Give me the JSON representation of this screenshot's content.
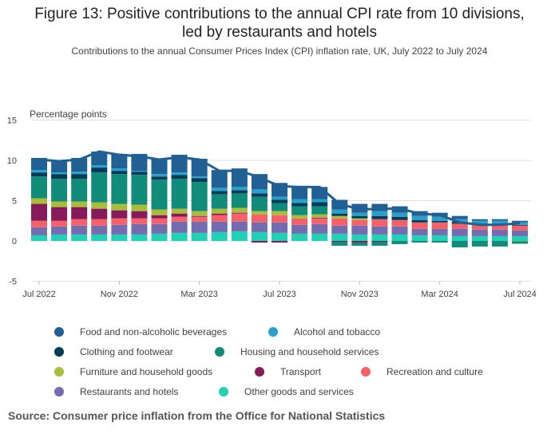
{
  "chart_data": {
    "type": "bar",
    "stacked": true,
    "title": "Figure 13: Positive contributions to the annual CPI rate from 10 divisions, led by restaurants and hotels",
    "title_lines": [
      "Figure 13: Positive contributions to the annual CPI rate from 10 divisions,",
      "led by restaurants and hotels"
    ],
    "subtitle": "Contributions to the annual Consumer Prices Index (CPI) inflation rate, UK, July 2022 to July 2024",
    "ylabel": "Percentage points",
    "xlabel": "",
    "ylim": [
      -5,
      15
    ],
    "yticks": [
      -5,
      0,
      5,
      10,
      15
    ],
    "grid": true,
    "legend_position": "bottom",
    "categories": [
      "Jul 2022",
      "Aug 2022",
      "Sep 2022",
      "Oct 2022",
      "Nov 2022",
      "Dec 2022",
      "Jan 2023",
      "Feb 2023",
      "Mar 2023",
      "Apr 2023",
      "May 2023",
      "Jun 2023",
      "Jul 2023",
      "Aug 2023",
      "Sep 2023",
      "Oct 2023",
      "Nov 2023",
      "Dec 2023",
      "Jan 2024",
      "Feb 2024",
      "Mar 2024",
      "Apr 2024",
      "May 2024",
      "Jun 2024",
      "Jul 2024"
    ],
    "xticks": [
      {
        "index": 0,
        "label": "Jul 2022"
      },
      {
        "index": 4,
        "label": "Nov 2022"
      },
      {
        "index": 8,
        "label": "Mar 2023"
      },
      {
        "index": 12,
        "label": "Jul 2023"
      },
      {
        "index": 16,
        "label": "Nov 2023"
      },
      {
        "index": 20,
        "label": "Mar 2024"
      },
      {
        "index": 24,
        "label": "Jul 2024"
      }
    ],
    "series": [
      {
        "name": "Other goods and services",
        "color": "#22d0b6",
        "values": [
          0.7,
          0.8,
          0.8,
          0.8,
          0.8,
          0.8,
          0.9,
          1.0,
          1.0,
          1.1,
          1.2,
          1.1,
          1.0,
          0.9,
          0.9,
          0.9,
          0.8,
          0.8,
          0.8,
          0.7,
          0.7,
          0.6,
          0.6,
          0.6,
          0.6
        ]
      },
      {
        "name": "Restaurants and hotels",
        "color": "#746cb1",
        "values": [
          1.0,
          1.0,
          1.1,
          1.1,
          1.2,
          1.3,
          1.2,
          1.4,
          1.4,
          1.3,
          1.2,
          1.2,
          1.3,
          1.1,
          1.2,
          1.0,
          1.1,
          1.0,
          1.0,
          0.8,
          0.8,
          0.9,
          0.8,
          0.8,
          0.7
        ]
      },
      {
        "name": "Recreation and culture",
        "color": "#f66068",
        "values": [
          0.8,
          0.7,
          0.8,
          0.8,
          0.8,
          0.7,
          0.7,
          0.6,
          0.6,
          0.8,
          1.0,
          1.0,
          0.9,
          0.8,
          0.7,
          0.9,
          0.7,
          0.9,
          0.8,
          0.8,
          0.8,
          0.6,
          0.6,
          0.6,
          0.6
        ]
      },
      {
        "name": "Transport",
        "color": "#871a5b",
        "values": [
          2.1,
          1.7,
          1.5,
          1.3,
          1.0,
          0.9,
          0.4,
          0.4,
          0.1,
          0.2,
          0.1,
          -0.2,
          -0.2,
          0.0,
          0.1,
          -0.1,
          -0.2,
          -0.1,
          0.0,
          0.0,
          0.0,
          0.1,
          0.0,
          0.0,
          0.0
        ]
      },
      {
        "name": "Furniture and household goods",
        "color": "#a8bd3a",
        "values": [
          0.7,
          0.7,
          0.7,
          0.8,
          0.8,
          0.8,
          0.7,
          0.6,
          0.6,
          0.6,
          0.6,
          0.4,
          0.5,
          0.4,
          0.4,
          0.3,
          0.2,
          0.0,
          0.0,
          0.0,
          0.0,
          0.0,
          0.0,
          0.0,
          -0.05
        ]
      },
      {
        "name": "Housing and household services",
        "color": "#118c7b",
        "values": [
          2.7,
          2.8,
          2.8,
          3.7,
          3.7,
          3.7,
          3.7,
          3.7,
          3.6,
          1.8,
          1.8,
          1.8,
          1.0,
          1.1,
          1.0,
          -0.5,
          -0.4,
          -0.5,
          -0.4,
          -0.2,
          -0.2,
          -0.8,
          -0.7,
          -0.7,
          -0.3
        ]
      },
      {
        "name": "Clothing and footwear",
        "color": "#003c57",
        "values": [
          0.5,
          0.6,
          0.6,
          0.6,
          0.4,
          0.4,
          0.4,
          0.5,
          0.5,
          0.4,
          0.4,
          0.4,
          0.4,
          0.4,
          0.5,
          0.3,
          0.3,
          0.4,
          0.4,
          0.3,
          0.2,
          0.2,
          0.1,
          0.1,
          0.1
        ]
      },
      {
        "name": "Alcohol and tobacco",
        "color": "#27a0cc",
        "values": [
          0.3,
          0.2,
          0.3,
          0.3,
          0.3,
          0.1,
          0.3,
          0.3,
          0.2,
          0.4,
          0.4,
          0.5,
          0.4,
          0.5,
          0.4,
          0.5,
          0.4,
          0.6,
          0.5,
          0.5,
          0.5,
          0.3,
          0.4,
          0.4,
          0.3
        ]
      },
      {
        "name": "Food and non-alcoholic beverages",
        "color": "#206095",
        "values": [
          1.5,
          1.5,
          1.7,
          1.7,
          1.8,
          2.1,
          1.9,
          2.2,
          2.2,
          2.2,
          2.3,
          1.9,
          1.7,
          1.6,
          1.5,
          1.2,
          1.1,
          0.9,
          0.8,
          0.6,
          0.5,
          0.4,
          0.2,
          0.2,
          0.2
        ]
      }
    ],
    "line": {
      "name": "CPI annual rate",
      "color": "#206095",
      "values": [
        10.1,
        9.9,
        10.1,
        11.1,
        10.7,
        10.5,
        10.1,
        10.4,
        10.1,
        8.7,
        8.7,
        7.9,
        6.8,
        6.7,
        6.7,
        4.6,
        3.9,
        4.0,
        4.0,
        3.4,
        3.2,
        2.3,
        2.0,
        2.0,
        2.2
      ]
    }
  },
  "legend_order": [
    "Food and non-alcoholic beverages",
    "Alcohol and tobacco",
    "Clothing and footwear",
    "Housing and household services",
    "Furniture and household goods",
    "Transport",
    "Recreation and culture",
    "Restaurants and hotels",
    "Other goods and services"
  ],
  "source": "Source: Consumer price inflation from the Office for National Statistics"
}
